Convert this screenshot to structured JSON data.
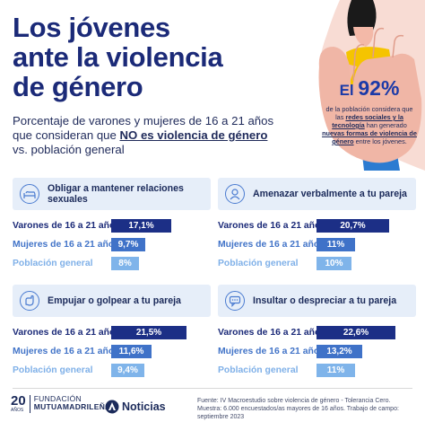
{
  "title": {
    "line1": "Los jóvenes",
    "line2": "ante la violencia",
    "line3": "de género"
  },
  "subtitle": {
    "part1": "Porcentaje de varones y mujeres de 16 a 21 años que consideran que ",
    "highlight": "NO es violencia de género",
    "part2": " vs. población general"
  },
  "callout": {
    "prefix": "El ",
    "value": "92%",
    "text1": "de la población considera que las ",
    "link1": "redes sociales y la tecnología",
    "text2": " han generado ",
    "link2": "nuevas formas de violencia de género",
    "text3": " entre los jóvenes."
  },
  "row_labels": [
    "Varones de 16 a 21 años",
    "Mujeres de 16 a 21 años",
    "Población general"
  ],
  "categories": [
    {
      "title": "Obligar a mantener relaciones sexuales",
      "icon": "bed-icon",
      "values": [
        "17,1%",
        "9,7%",
        "8%"
      ],
      "numbers": [
        17.1,
        9.7,
        8
      ]
    },
    {
      "title": "Amenazar verbalmente a tu pareja",
      "icon": "threat-icon",
      "values": [
        "20,7%",
        "11%",
        "10%"
      ],
      "numbers": [
        20.7,
        11,
        10
      ]
    },
    {
      "title": "Empujar o golpear a tu pareja",
      "icon": "hand-push-icon",
      "values": [
        "21,5%",
        "11,6%",
        "9,4%"
      ],
      "numbers": [
        21.5,
        11.6,
        9.4
      ]
    },
    {
      "title": "Insultar o despreciar a tu pareja",
      "icon": "speech-bubble-icon",
      "values": [
        "22,6%",
        "13,2%",
        "11%"
      ],
      "numbers": [
        22.6,
        13.2,
        11
      ]
    }
  ],
  "footer": {
    "fmm_number": "20",
    "fmm_anos": "AÑOS",
    "fmm_line1": "FUNDACIÓN",
    "fmm_line2": "MUTUAMADRILEÑA",
    "an_label": "Noticias",
    "source_line1": "Fuente: IV Macroestudio sobre violencia de género - Tolerancia Cero.",
    "source_line2": "Muestra: 6.000 encuestados/as mayores de 16 años. Trabajo de campo: septiembre 2023"
  },
  "colors": {
    "title": "#1b2a78",
    "bar_varones": "#1c2f86",
    "bar_mujeres": "#3f72c8",
    "bar_poblacion": "#7fb4ea",
    "card_header": "#e6eef9",
    "illus_bg": "#f8dcd4",
    "hand": "#f0b6a6"
  }
}
